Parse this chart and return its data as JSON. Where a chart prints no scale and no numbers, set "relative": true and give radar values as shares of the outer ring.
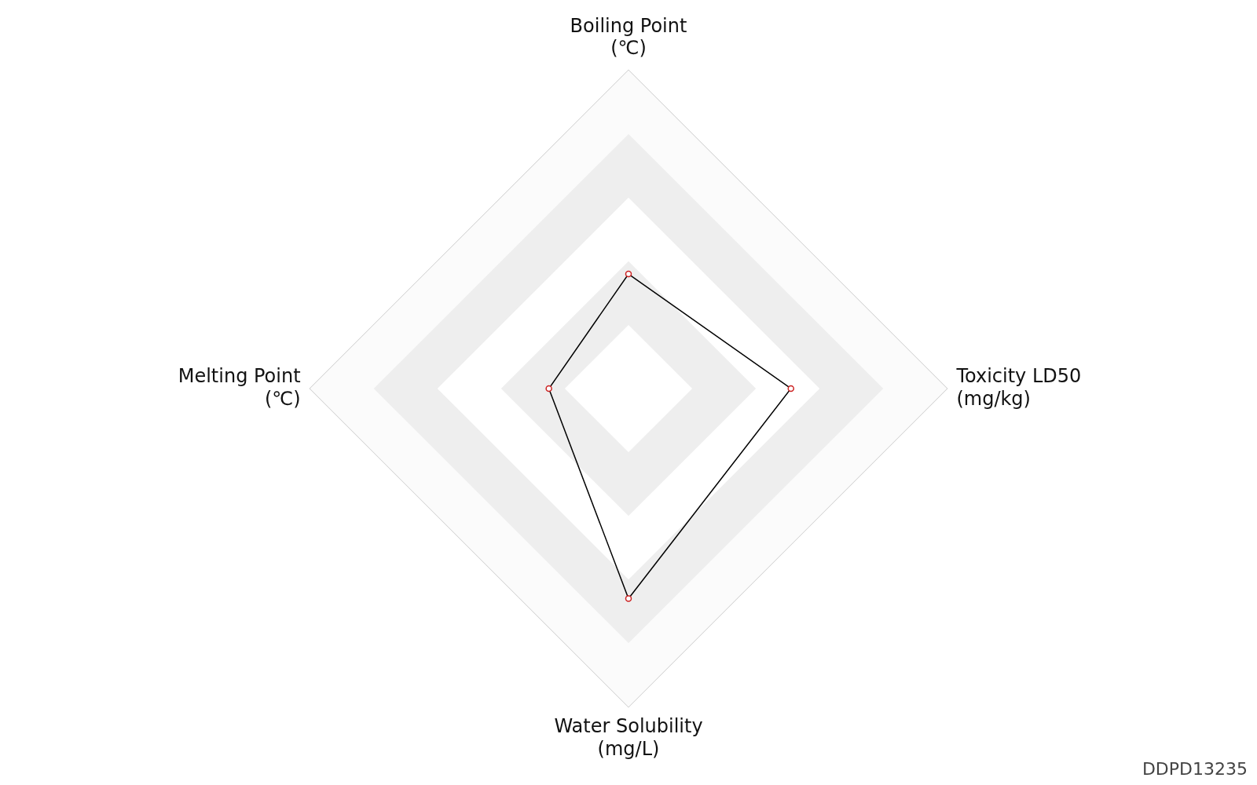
{
  "chart_data": {
    "type": "radar",
    "relative": true,
    "categories": [
      "Boiling Point\n(℃)",
      "Toxicity LD50\n(mg/kg)",
      "Water Solubility\n(mg/L)",
      "Melting Point\n(℃)"
    ],
    "series": [
      {
        "color": "#000000",
        "values": [
          0.36,
          0.51,
          0.66,
          0.25
        ]
      }
    ],
    "marker": "circle",
    "grid": true,
    "legend": false,
    "annotations": [
      "DDPD13235"
    ]
  }
}
